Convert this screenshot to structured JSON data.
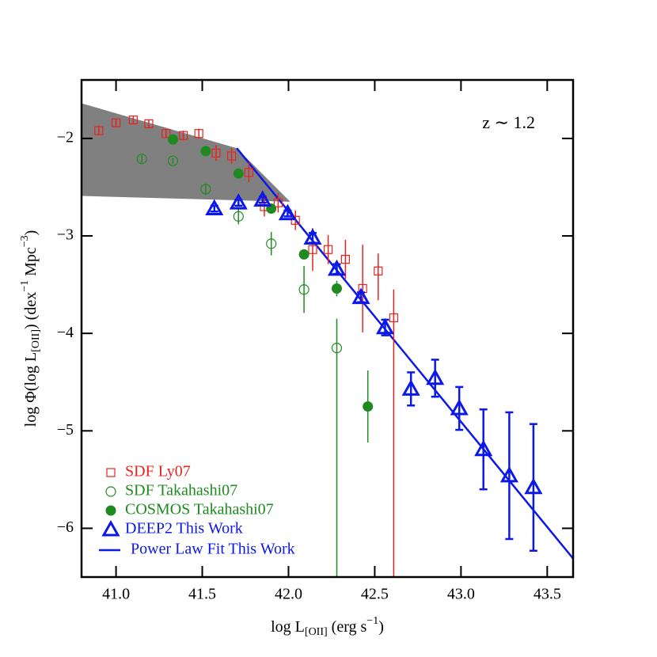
{
  "chart_data": {
    "type": "scatter",
    "annotation": "z ∼ 1.2",
    "x_label": [
      "log L",
      "[OII]",
      " (erg s",
      "−1",
      ")"
    ],
    "y_label": [
      "log Φ(log L",
      "[OII]",
      ") (dex",
      "−1",
      " Mpc",
      "−3",
      ")"
    ],
    "xlim": [
      40.8,
      43.65
    ],
    "ylim": [
      -6.5,
      -1.4
    ],
    "xticks": [
      {
        "value": 41,
        "label": "41.0"
      },
      {
        "value": 41.5,
        "label": "41.5"
      },
      {
        "value": 42,
        "label": "42.0"
      },
      {
        "value": 42.5,
        "label": "42.5"
      },
      {
        "value": 43,
        "label": "43.0"
      },
      {
        "value": 43.5,
        "label": "43.5"
      }
    ],
    "yticks": [
      {
        "value": -2,
        "label": "−2"
      },
      {
        "value": -3,
        "label": "−3"
      },
      {
        "value": -4,
        "label": "−4"
      },
      {
        "value": -5,
        "label": "−5"
      },
      {
        "value": -6,
        "label": "−6"
      }
    ],
    "legend": "lower left",
    "series": [
      {
        "name": "SDF Ly07",
        "color": "#e8231f",
        "marker": "open-square",
        "x": [
          40.9,
          41.0,
          41.1,
          41.19,
          41.29,
          41.39,
          41.48,
          41.58,
          41.67,
          41.77,
          41.86,
          41.94,
          42.04,
          42.14,
          42.23,
          42.33,
          42.43,
          42.52,
          42.61
        ],
        "y": [
          -1.92,
          -1.84,
          -1.81,
          -1.85,
          -1.95,
          -1.97,
          -1.95,
          -2.15,
          -2.18,
          -2.35,
          -2.7,
          -2.66,
          -2.84,
          -3.14,
          -3.14,
          -3.24,
          -3.54,
          -3.36,
          -3.84
        ],
        "err_low": [
          0.05,
          0.04,
          0.04,
          0.04,
          0.04,
          0.05,
          0.05,
          0.08,
          0.08,
          0.1,
          0.1,
          0.1,
          0.1,
          0.22,
          0.15,
          0.2,
          0.45,
          0.3,
          3
        ],
        "err_high": [
          0.05,
          0.04,
          0.04,
          0.04,
          0.04,
          0.05,
          0.05,
          0.08,
          0.08,
          0.1,
          0.1,
          0.1,
          0.1,
          0.22,
          0.15,
          0.2,
          0.45,
          0.18,
          0.29
        ]
      },
      {
        "name": "SDF Takahashi07",
        "color": "#1f8a1f",
        "marker": "open-circle",
        "x": [
          41.15,
          41.33,
          41.52,
          41.71,
          41.9,
          42.09,
          42.28
        ],
        "y": [
          -2.21,
          -2.23,
          -2.52,
          -2.8,
          -3.08,
          -3.55,
          -4.15
        ],
        "err_low": [
          0.04,
          0.03,
          0.06,
          0.08,
          0.12,
          0.24,
          3
        ],
        "err_high": [
          0.04,
          0.03,
          0.06,
          0.08,
          0.12,
          0.24,
          0.3
        ]
      },
      {
        "name": "COSMOS Takahashi07",
        "color": "#1f8a1f",
        "marker": "filled-circle",
        "x": [
          41.33,
          41.52,
          41.71,
          41.9,
          42.09,
          42.28,
          42.46
        ],
        "y": [
          -2.01,
          -2.13,
          -2.36,
          -2.72,
          -3.19,
          -3.54,
          -4.75
        ],
        "err_low": [
          0.03,
          0.03,
          0.03,
          0.04,
          0.05,
          0.08,
          0.37
        ],
        "err_high": [
          0.03,
          0.03,
          0.03,
          0.04,
          0.05,
          0.08,
          0.37
        ]
      },
      {
        "name": "DEEP2 This Work",
        "color": "#0b18e8",
        "marker": "open-triangle",
        "x": [
          41.57,
          41.71,
          41.85,
          41.995,
          42.14,
          42.28,
          42.42,
          42.56,
          42.71,
          42.85,
          42.99,
          43.13,
          43.28,
          43.42
        ],
        "y": [
          -2.72,
          -2.66,
          -2.63,
          -2.77,
          -3.02,
          -3.34,
          -3.63,
          -3.94,
          -4.57,
          -4.46,
          -4.77,
          -5.19,
          -5.46,
          -5.58
        ],
        "err_low": [
          0.03,
          0.03,
          0.03,
          0.03,
          0.05,
          0.05,
          0.05,
          0.08,
          0.17,
          0.19,
          0.22,
          0.41,
          0.65,
          0.65
        ],
        "err_high": [
          0.03,
          0.03,
          0.03,
          0.03,
          0.05,
          0.05,
          0.05,
          0.08,
          0.17,
          0.19,
          0.22,
          0.41,
          0.65,
          0.65
        ]
      }
    ],
    "fit": {
      "name": "Power Law Fit This Work",
      "color": "#0b18e8",
      "x": [
        41.7,
        43.65
      ],
      "y": [
        -2.1,
        -6.31
      ]
    },
    "shaded_region": {
      "color": "#808080",
      "x": [
        40.8,
        41.7,
        42.01,
        40.8
      ],
      "y": [
        -1.64,
        -2.1,
        -2.65,
        -2.59
      ]
    }
  }
}
